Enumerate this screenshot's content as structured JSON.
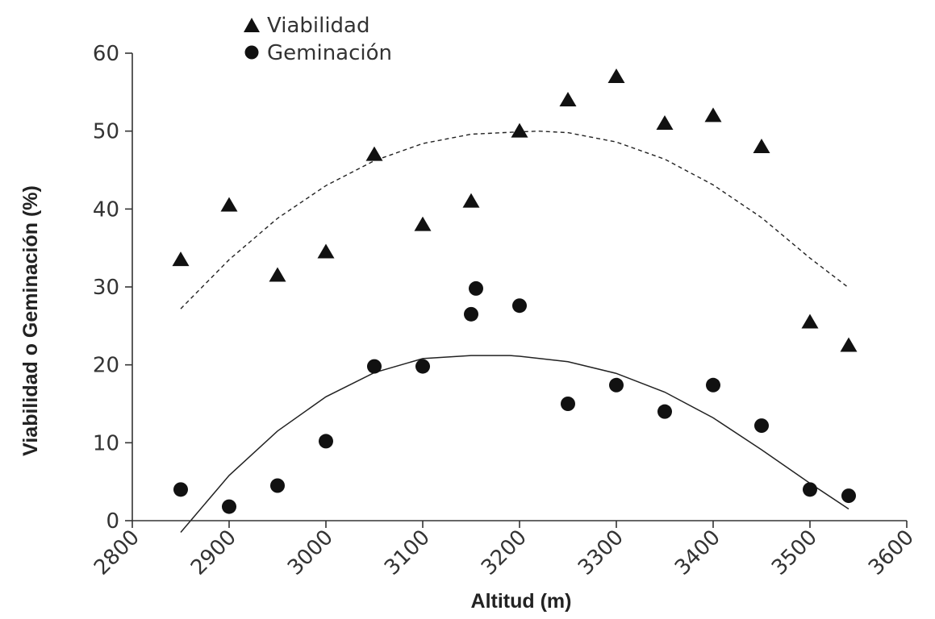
{
  "chart_data": {
    "type": "scatter",
    "xlabel": "Altitud (m)",
    "ylabel": "Viabilidad o Geminación (%)",
    "xlim": [
      2800,
      3600
    ],
    "ylim": [
      0,
      60
    ],
    "xticks": [
      2800,
      2900,
      3000,
      3100,
      3200,
      3300,
      3400,
      3500,
      3600
    ],
    "yticks": [
      0,
      10,
      20,
      30,
      40,
      50,
      60
    ],
    "grid": false,
    "legend_position": "top-left",
    "series": [
      {
        "name": "Viabilidad",
        "marker": "triangle",
        "color": "#111111",
        "x": [
          2850,
          2900,
          2950,
          3000,
          3050,
          3100,
          3150,
          3200,
          3250,
          3300,
          3350,
          3400,
          3450,
          3500,
          3540
        ],
        "y": [
          33.5,
          40.5,
          31.5,
          34.5,
          47,
          38,
          41,
          50,
          54,
          57,
          51,
          52,
          48,
          25.5,
          22.5
        ],
        "fit": {
          "style": "dashed",
          "x": [
            2850,
            2900,
            2950,
            3000,
            3050,
            3100,
            3150,
            3200,
            3220,
            3250,
            3300,
            3350,
            3400,
            3450,
            3500,
            3540
          ],
          "y": [
            27.2,
            33.5,
            38.8,
            43.0,
            46.2,
            48.4,
            49.6,
            49.9,
            50.0,
            49.8,
            48.6,
            46.4,
            43.1,
            38.9,
            33.7,
            29.9
          ]
        }
      },
      {
        "name": "Geminación",
        "marker": "circle",
        "color": "#111111",
        "x": [
          2850,
          2900,
          2950,
          3000,
          3050,
          3100,
          3150,
          3155,
          3200,
          3250,
          3300,
          3350,
          3400,
          3450,
          3500,
          3540
        ],
        "y": [
          4,
          1.8,
          4.5,
          10.2,
          19.8,
          19.8,
          26.5,
          29.8,
          27.6,
          15,
          17.4,
          14,
          17.4,
          12.2,
          4,
          3.2
        ],
        "fit": {
          "style": "solid",
          "x": [
            2850,
            2900,
            2950,
            3000,
            3050,
            3100,
            3150,
            3190,
            3200,
            3250,
            3300,
            3350,
            3400,
            3450,
            3500,
            3540
          ],
          "y": [
            -1.5,
            5.8,
            11.5,
            15.9,
            19.0,
            20.8,
            21.2,
            21.2,
            21.1,
            20.4,
            18.9,
            16.5,
            13.2,
            9.1,
            4.8,
            1.5
          ]
        }
      }
    ]
  }
}
